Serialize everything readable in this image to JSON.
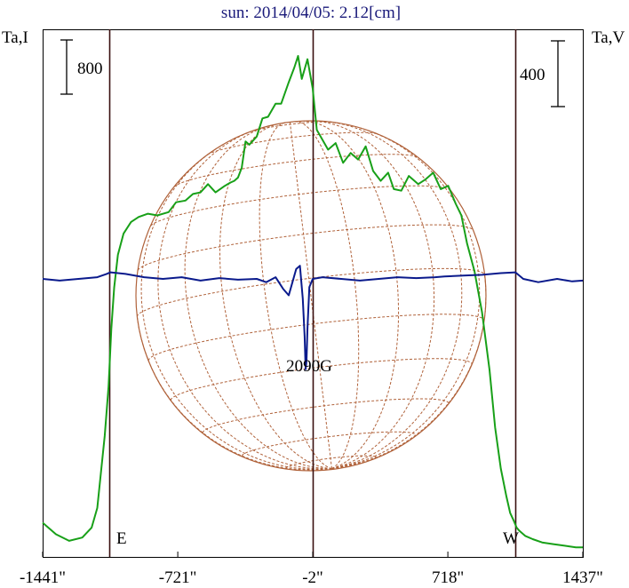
{
  "chart_data": {
    "type": "line",
    "title": "sun: 2014/04/05: 2.12[cm]",
    "left_axis_label": "Ta,I",
    "right_axis_label": "Ta,V",
    "left_scale_bar": "800",
    "right_scale_bar": "400",
    "x_tick_labels": [
      "-1441\"",
      "-721\"",
      "-2\"",
      "718\"",
      "1437\""
    ],
    "x_ticks": [
      -1441,
      -721,
      -2,
      718,
      1437
    ],
    "xlim": [
      -1441,
      1437
    ],
    "limb_markers": {
      "east": "E",
      "west": "W",
      "east_x": -1086,
      "west_x": 1078
    },
    "annotation": {
      "text": "2090G",
      "x": -40
    },
    "grid": false,
    "colors": {
      "title": "#1a1a7a",
      "stokes_i": "#18a018",
      "stokes_v": "#0a1a8c",
      "disk": "#b0623a",
      "limb_lines": "#3a1010",
      "frame": "#000000"
    },
    "series": [
      {
        "name": "Ta,I",
        "color": "#18a018",
        "x": [
          -1441,
          -1370,
          -1300,
          -1230,
          -1180,
          -1150,
          -1110,
          -1090,
          -1075,
          -1060,
          -1040,
          -1010,
          -970,
          -930,
          -880,
          -830,
          -770,
          -730,
          -680,
          -640,
          -600,
          -560,
          -520,
          -470,
          -440,
          -420,
          -400,
          -380,
          -360,
          -340,
          -300,
          -270,
          -240,
          -200,
          -170,
          -130,
          -100,
          -80,
          -60,
          -30,
          -2,
          20,
          40,
          80,
          120,
          160,
          200,
          240,
          280,
          320,
          360,
          400,
          430,
          470,
          510,
          560,
          600,
          640,
          680,
          720,
          760,
          790,
          820,
          860,
          900,
          940,
          970,
          1000,
          1030,
          1050,
          1070,
          1085,
          1100,
          1130,
          1170,
          1220,
          1280,
          1340,
          1400,
          1437
        ],
        "values": [
          170,
          100,
          60,
          80,
          140,
          260,
          700,
          1000,
          1350,
          1600,
          1800,
          1930,
          2000,
          2030,
          2050,
          2040,
          2060,
          2120,
          2130,
          2170,
          2180,
          2230,
          2180,
          2220,
          2240,
          2250,
          2270,
          2330,
          2490,
          2470,
          2520,
          2630,
          2640,
          2720,
          2720,
          2850,
          2940,
          3010,
          2870,
          2990,
          2810,
          2560,
          2520,
          2440,
          2480,
          2360,
          2420,
          2380,
          2460,
          2310,
          2250,
          2300,
          2200,
          2190,
          2280,
          2230,
          2260,
          2300,
          2200,
          2220,
          2110,
          2040,
          1870,
          1700,
          1450,
          1100,
          750,
          500,
          330,
          230,
          180,
          140,
          120,
          90,
          70,
          50,
          40,
          30,
          20,
          20
        ]
      },
      {
        "name": "Ta,V",
        "color": "#0a1a8c",
        "x": [
          -1441,
          -1350,
          -1250,
          -1150,
          -1100,
          -1080,
          -1000,
          -900,
          -800,
          -700,
          -600,
          -500,
          -400,
          -300,
          -250,
          -200,
          -160,
          -130,
          -110,
          -90,
          -70,
          -55,
          -45,
          -40,
          -35,
          -30,
          -20,
          -2,
          50,
          150,
          250,
          350,
          450,
          550,
          650,
          700,
          800,
          900,
          1000,
          1078,
          1120,
          1200,
          1300,
          1380,
          1437
        ],
        "values": [
          0,
          -10,
          0,
          10,
          30,
          40,
          30,
          10,
          0,
          10,
          -10,
          5,
          -5,
          0,
          -20,
          10,
          -60,
          -100,
          -20,
          60,
          80,
          -120,
          -350,
          -550,
          -500,
          -300,
          -50,
          0,
          10,
          0,
          -10,
          0,
          10,
          5,
          10,
          15,
          20,
          25,
          35,
          40,
          0,
          -20,
          0,
          -15,
          -10
        ]
      }
    ]
  }
}
